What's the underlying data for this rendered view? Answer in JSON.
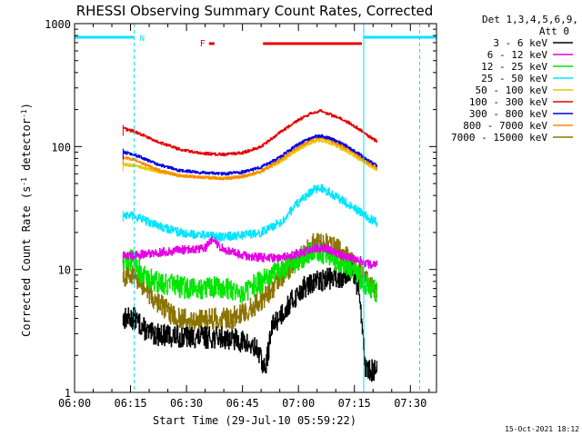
{
  "chart_data": {
    "type": "line",
    "title": "RHESSI Observing Summary Count Rates, Corrected",
    "xlabel": "Start Time (29-Jul-10 05:59:22)",
    "ylabel_main": "Corrected Count Rate (s",
    "ylabel_sup1": "-1",
    "ylabel_mid": " detector",
    "ylabel_sup2": "-1",
    "ylabel_end": ")",
    "y_scale": "log",
    "ylim": [
      1,
      1000
    ],
    "xlim_minutes": [
      0,
      97
    ],
    "x_tick_labels": [
      "06:00",
      "06:15",
      "06:30",
      "06:45",
      "07:00",
      "07:15",
      "07:30"
    ],
    "x_tick_minutes": [
      0,
      15,
      30,
      45,
      60,
      75,
      90
    ],
    "y_tick_labels": [
      "1",
      "10",
      "100",
      "1000"
    ],
    "y_tick_values": [
      1,
      10,
      100,
      1000
    ],
    "grid": false,
    "legend_header": [
      "Det 1,3,4,5,6,9,",
      "Att 0"
    ],
    "legend_placement": "right",
    "footer_date": "15-Oct-2021 18:12",
    "flags": {
      "N_label": "N",
      "F_label": "F",
      "night_segments": [
        [
          0,
          16
        ],
        [
          77.5,
          97
        ]
      ],
      "flare_segments": [
        [
          36,
          37.5
        ],
        [
          50.5,
          77
        ]
      ],
      "night_color": "#00e5ff",
      "flare_color": "#e60000"
    },
    "boundaries_minutes": [
      16,
      77.5,
      92.5
    ],
    "data_range_minutes": [
      13,
      81
    ],
    "series": [
      {
        "name": "3 - 6 keV",
        "color": "#000000",
        "points": [
          [
            13,
            4
          ],
          [
            16,
            4
          ],
          [
            20,
            3
          ],
          [
            30,
            2.8
          ],
          [
            40,
            2.8
          ],
          [
            45,
            2.6
          ],
          [
            49,
            2.2
          ],
          [
            51,
            1.5
          ],
          [
            53,
            3.5
          ],
          [
            57,
            5
          ],
          [
            61,
            7
          ],
          [
            65,
            8
          ],
          [
            68,
            8.5
          ],
          [
            71,
            8.5
          ],
          [
            74,
            10
          ],
          [
            76,
            7
          ],
          [
            77,
            4
          ],
          [
            78,
            1.5
          ],
          [
            81,
            1.5
          ]
        ]
      },
      {
        "name": "6 - 12 keV",
        "color": "#e600e6",
        "points": [
          [
            13,
            13
          ],
          [
            16,
            13
          ],
          [
            20,
            13.5
          ],
          [
            25,
            14
          ],
          [
            30,
            14.5
          ],
          [
            35,
            15
          ],
          [
            37,
            18
          ],
          [
            39,
            15
          ],
          [
            45,
            13
          ],
          [
            50,
            12.5
          ],
          [
            55,
            12.5
          ],
          [
            60,
            13.5
          ],
          [
            65,
            15
          ],
          [
            68,
            14.5
          ],
          [
            72,
            13
          ],
          [
            76,
            12
          ],
          [
            79,
            11
          ],
          [
            81,
            11
          ]
        ]
      },
      {
        "name": "12 - 25 keV",
        "color": "#00e600",
        "points": [
          [
            13,
            12
          ],
          [
            16,
            12
          ],
          [
            18,
            9
          ],
          [
            22,
            8
          ],
          [
            26,
            7.5
          ],
          [
            30,
            7
          ],
          [
            40,
            7.2
          ],
          [
            45,
            6.5
          ],
          [
            50,
            8
          ],
          [
            55,
            10
          ],
          [
            60,
            12
          ],
          [
            64,
            14
          ],
          [
            66,
            14
          ],
          [
            70,
            12
          ],
          [
            75,
            10
          ],
          [
            78,
            7.5
          ],
          [
            81,
            6.5
          ]
        ]
      },
      {
        "name": "25 - 50 keV",
        "color": "#00e5ff",
        "points": [
          [
            13,
            28
          ],
          [
            16,
            27
          ],
          [
            22,
            23
          ],
          [
            28,
            20
          ],
          [
            35,
            19
          ],
          [
            40,
            18.5
          ],
          [
            45,
            19
          ],
          [
            50,
            20
          ],
          [
            55,
            24
          ],
          [
            60,
            35
          ],
          [
            64,
            45
          ],
          [
            66,
            46
          ],
          [
            68,
            43
          ],
          [
            72,
            36
          ],
          [
            76,
            30
          ],
          [
            79,
            26
          ],
          [
            81,
            24
          ]
        ]
      },
      {
        "name": "50 - 100 keV",
        "color": "#e6c800",
        "points": [
          [
            13,
            72
          ],
          [
            16,
            70
          ],
          [
            22,
            63
          ],
          [
            28,
            58
          ],
          [
            35,
            56
          ],
          [
            40,
            55.5
          ],
          [
            45,
            57
          ],
          [
            50,
            62
          ],
          [
            55,
            75
          ],
          [
            60,
            95
          ],
          [
            64,
            110
          ],
          [
            66,
            112
          ],
          [
            68,
            108
          ],
          [
            72,
            95
          ],
          [
            76,
            80
          ],
          [
            79,
            70
          ],
          [
            81,
            65
          ]
        ]
      },
      {
        "name": "100 - 300 keV",
        "color": "#e60000",
        "points": [
          [
            13,
            140
          ],
          [
            16,
            133
          ],
          [
            22,
            110
          ],
          [
            28,
            95
          ],
          [
            34,
            88
          ],
          [
            40,
            86
          ],
          [
            45,
            89
          ],
          [
            50,
            100
          ],
          [
            55,
            130
          ],
          [
            60,
            165
          ],
          [
            64,
            190
          ],
          [
            66,
            195
          ],
          [
            68,
            185
          ],
          [
            72,
            165
          ],
          [
            76,
            140
          ],
          [
            79,
            120
          ],
          [
            81,
            110
          ]
        ]
      },
      {
        "name": "300 - 800 keV",
        "color": "#0000e6",
        "points": [
          [
            13,
            90
          ],
          [
            16,
            86
          ],
          [
            22,
            72
          ],
          [
            28,
            64
          ],
          [
            35,
            61
          ],
          [
            40,
            60
          ],
          [
            45,
            62
          ],
          [
            50,
            68
          ],
          [
            55,
            82
          ],
          [
            60,
            105
          ],
          [
            64,
            120
          ],
          [
            66,
            122
          ],
          [
            68,
            118
          ],
          [
            72,
            105
          ],
          [
            76,
            88
          ],
          [
            79,
            76
          ],
          [
            81,
            70
          ]
        ]
      },
      {
        "name": "800 - 7000 keV",
        "color": "#ff8800",
        "points": [
          [
            13,
            82
          ],
          [
            16,
            78
          ],
          [
            22,
            65
          ],
          [
            28,
            58
          ],
          [
            35,
            56
          ],
          [
            40,
            55
          ],
          [
            45,
            57
          ],
          [
            50,
            63
          ],
          [
            55,
            78
          ],
          [
            60,
            100
          ],
          [
            64,
            116
          ],
          [
            66,
            118
          ],
          [
            68,
            114
          ],
          [
            72,
            100
          ],
          [
            76,
            84
          ],
          [
            79,
            73
          ],
          [
            81,
            67
          ]
        ]
      },
      {
        "name": "7000 - 15000 keV",
        "color": "#8b7300",
        "points": [
          [
            13,
            9
          ],
          [
            16,
            9
          ],
          [
            19,
            7
          ],
          [
            22,
            5.5
          ],
          [
            25,
            4.5
          ],
          [
            28,
            4
          ],
          [
            32,
            3.8
          ],
          [
            36,
            4
          ],
          [
            42,
            4
          ],
          [
            48,
            5
          ],
          [
            53,
            7
          ],
          [
            57,
            10
          ],
          [
            61,
            13
          ],
          [
            64,
            16
          ],
          [
            66,
            17
          ],
          [
            70,
            15
          ],
          [
            74,
            12
          ],
          [
            78,
            8
          ],
          [
            81,
            7
          ]
        ]
      }
    ]
  }
}
